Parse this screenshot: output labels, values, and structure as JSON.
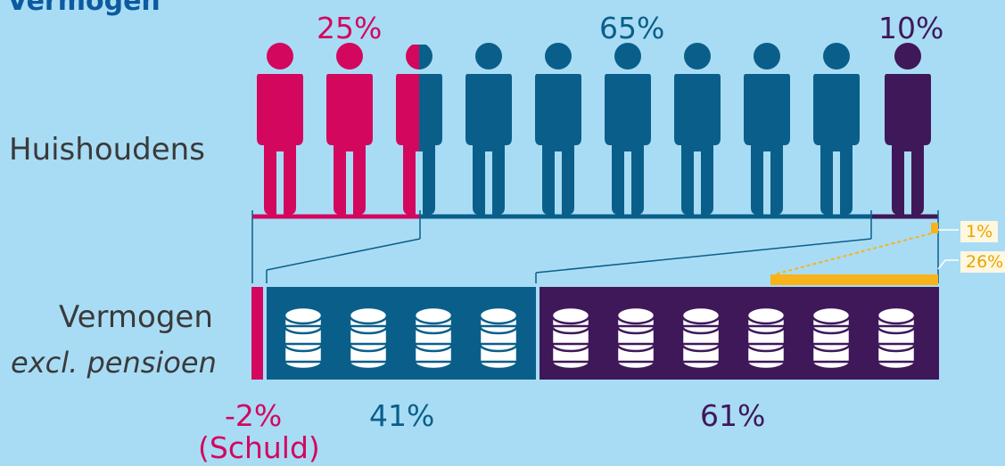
{
  "title": "Vermogen",
  "top_percentages": {
    "left": "25%",
    "middle": "65%",
    "right": "10%"
  },
  "row_labels": {
    "households": "Huishoudens",
    "wealth_line1": "Vermogen",
    "wealth_line2": "excl. pensioen"
  },
  "bottom_percentages": {
    "debt": "-2%",
    "debt_note": "(Schuld)",
    "middle": "41%",
    "right": "61%"
  },
  "side_percentages": {
    "top1": "1%",
    "top10": "26%"
  },
  "colors": {
    "pink": "#d4075f",
    "blue": "#0a5f8a",
    "purple": "#3f1859",
    "orange": "#f7b319",
    "background": "#a8dcf5",
    "coin": "#ffffff"
  },
  "icons": {
    "person": "person-icon",
    "coins": "coin-stack-icon"
  }
}
